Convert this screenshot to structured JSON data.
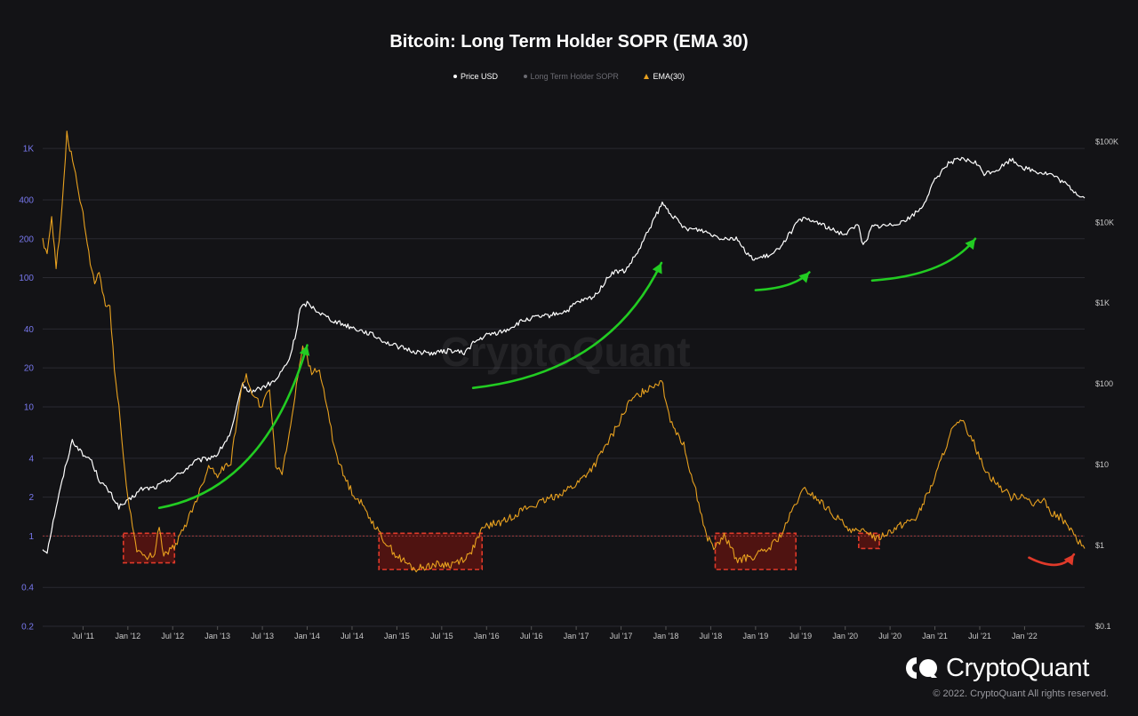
{
  "chart_data": {
    "type": "line",
    "title": "Bitcoin: Long Term Holder SOPR (EMA 30)",
    "legend": {
      "placement": "top-center",
      "items": [
        {
          "label": "Price USD",
          "color": "#ffffff",
          "marker": "dot"
        },
        {
          "label": "Long Term Holder SOPR",
          "color": "#6b6b72",
          "marker": "dot"
        },
        {
          "label": "EMA(30)",
          "color": "#e8a11f",
          "marker": "triangle"
        }
      ]
    },
    "x_ticks": [
      "Jul '11",
      "Jan '12",
      "Jul '12",
      "Jan '13",
      "Jul '13",
      "Jan '14",
      "Jul '14",
      "Jan '15",
      "Jul '15",
      "Jan '16",
      "Jul '16",
      "Jan '17",
      "Jul '17",
      "Jan '18",
      "Jul '18",
      "Jan '19",
      "Jul '19",
      "Jan '20",
      "Jul '20",
      "Jan '21",
      "Jul '21",
      "Jan '22"
    ],
    "x_tick_years": [
      2011.5,
      2012.0,
      2012.5,
      2013.0,
      2013.5,
      2014.0,
      2014.5,
      2015.0,
      2015.5,
      2016.0,
      2016.5,
      2017.0,
      2017.5,
      2018.0,
      2018.5,
      2019.0,
      2019.5,
      2020.0,
      2020.5,
      2021.0,
      2021.5,
      2022.0
    ],
    "x_range": [
      2011.05,
      2022.67
    ],
    "left_axis": {
      "scale": "log",
      "range": [
        0.2,
        1800
      ],
      "ticks": [
        0.2,
        0.4,
        1,
        2,
        4,
        10,
        20,
        40,
        100,
        200,
        400,
        1000
      ],
      "tick_labels": [
        "0.2",
        "0.4",
        "1",
        "2",
        "4",
        "10",
        "20",
        "40",
        "100",
        "200",
        "400",
        "1K"
      ],
      "color": "#7878ee"
    },
    "right_axis": {
      "scale": "log",
      "range": [
        0.1,
        210000
      ],
      "ticks": [
        0.1,
        1,
        10,
        100,
        1000,
        10000,
        100000
      ],
      "tick_labels": [
        "$0.1",
        "$1",
        "$10",
        "$100",
        "$1K",
        "$10K",
        "$100K"
      ]
    },
    "reference_line": {
      "value": 1,
      "axis": "left",
      "color": "#a33a3a",
      "style": "dashed"
    },
    "grid": true,
    "series": [
      {
        "name": "Price USD",
        "axis": "right",
        "color": "#ffffff",
        "x": [
          2011.05,
          2011.1,
          2011.2,
          2011.3,
          2011.38,
          2011.45,
          2011.5,
          2011.58,
          2011.68,
          2011.8,
          2011.9,
          2012.0,
          2012.15,
          2012.3,
          2012.45,
          2012.6,
          2012.75,
          2012.9,
          2013.0,
          2013.15,
          2013.28,
          2013.35,
          2013.5,
          2013.65,
          2013.8,
          2013.88,
          2013.92,
          2014.0,
          2014.15,
          2014.3,
          2014.5,
          2014.7,
          2014.9,
          2015.05,
          2015.2,
          2015.4,
          2015.6,
          2015.75,
          2015.85,
          2016.0,
          2016.2,
          2016.4,
          2016.5,
          2016.7,
          2016.9,
          2017.0,
          2017.2,
          2017.4,
          2017.55,
          2017.7,
          2017.85,
          2017.96,
          2018.05,
          2018.2,
          2018.4,
          2018.6,
          2018.8,
          2018.9,
          2019.0,
          2019.2,
          2019.35,
          2019.5,
          2019.7,
          2019.85,
          2020.0,
          2020.15,
          2020.2,
          2020.3,
          2020.5,
          2020.7,
          2020.85,
          2021.0,
          2021.15,
          2021.3,
          2021.45,
          2021.55,
          2021.7,
          2021.85,
          2022.0,
          2022.15,
          2022.3,
          2022.45,
          2022.6,
          2022.67
        ],
        "y": [
          0.9,
          0.85,
          3,
          9,
          20,
          16,
          13,
          12,
          6.5,
          4.5,
          3,
          3.5,
          5,
          5.2,
          6.5,
          8,
          11,
          12,
          13.5,
          25,
          100,
          80,
          90,
          110,
          200,
          450,
          850,
          1000,
          750,
          600,
          500,
          420,
          320,
          280,
          250,
          240,
          260,
          240,
          320,
          400,
          450,
          600,
          650,
          700,
          800,
          1000,
          1200,
          2400,
          2500,
          4500,
          10000,
          17000,
          13000,
          8500,
          8000,
          6500,
          6300,
          4000,
          3500,
          4000,
          6500,
          11000,
          10000,
          8000,
          7200,
          9500,
          5000,
          8800,
          9200,
          11000,
          15000,
          33000,
          55000,
          60000,
          55000,
          40000,
          45000,
          60000,
          47000,
          42000,
          39000,
          30000,
          22000,
          20000
        ]
      },
      {
        "name": "EMA(30)",
        "axis": "left",
        "color": "#e8a11f",
        "x": [
          2011.05,
          2011.1,
          2011.15,
          2011.2,
          2011.25,
          2011.32,
          2011.4,
          2011.5,
          2011.58,
          2011.63,
          2011.68,
          2011.75,
          2011.8,
          2011.85,
          2011.9,
          2011.95,
          2012.0,
          2012.05,
          2012.1,
          2012.2,
          2012.3,
          2012.35,
          2012.4,
          2012.5,
          2012.6,
          2012.7,
          2012.8,
          2012.9,
          2013.0,
          2013.15,
          2013.25,
          2013.32,
          2013.4,
          2013.5,
          2013.58,
          2013.65,
          2013.72,
          2013.8,
          2013.88,
          2013.95,
          2014.05,
          2014.12,
          2014.2,
          2014.3,
          2014.4,
          2014.5,
          2014.6,
          2014.7,
          2014.8,
          2014.9,
          2015.0,
          2015.2,
          2015.4,
          2015.6,
          2015.8,
          2015.95,
          2016.0,
          2016.2,
          2016.4,
          2016.6,
          2016.8,
          2017.0,
          2017.2,
          2017.4,
          2017.6,
          2017.8,
          2017.95,
          2018.05,
          2018.2,
          2018.35,
          2018.45,
          2018.55,
          2018.65,
          2018.8,
          2019.0,
          2019.15,
          2019.3,
          2019.45,
          2019.55,
          2019.7,
          2019.85,
          2020.0,
          2020.15,
          2020.25,
          2020.35,
          2020.45,
          2020.6,
          2020.8,
          2021.0,
          2021.1,
          2021.2,
          2021.3,
          2021.4,
          2021.5,
          2021.6,
          2021.7,
          2021.85,
          2022.0,
          2022.1,
          2022.2,
          2022.3,
          2022.4,
          2022.5,
          2022.6,
          2022.67
        ],
        "y": [
          200,
          150,
          300,
          120,
          250,
          1300,
          700,
          300,
          130,
          90,
          110,
          60,
          60,
          20,
          10,
          4,
          2,
          1.2,
          0.8,
          0.65,
          0.75,
          1.2,
          0.7,
          0.8,
          1.05,
          1.5,
          2.2,
          3.5,
          3,
          3.8,
          12,
          18,
          12,
          10,
          14,
          3.5,
          3.2,
          6,
          15,
          30,
          18,
          20,
          12,
          5,
          3,
          2.2,
          1.8,
          1.4,
          1.05,
          0.85,
          0.7,
          0.55,
          0.6,
          0.6,
          0.7,
          1.1,
          1.2,
          1.3,
          1.6,
          1.8,
          2.1,
          2.5,
          3.5,
          6,
          11,
          14,
          16,
          8,
          5,
          2,
          1,
          0.8,
          1,
          0.65,
          0.7,
          0.8,
          1.05,
          1.8,
          2.3,
          1.9,
          1.5,
          1.2,
          1.05,
          1.1,
          0.95,
          1.05,
          1.2,
          1.4,
          2.8,
          4.5,
          6.8,
          7.6,
          6,
          4,
          3,
          2.5,
          2,
          2.1,
          1.7,
          1.9,
          1.5,
          1.4,
          1.15,
          0.9,
          0.8
        ]
      }
    ],
    "annotations": [
      {
        "type": "arrow",
        "color": "#22cc22",
        "from_x": 2012.35,
        "from_y_left": 1.65,
        "to_x": 2014.0,
        "to_y_left": 30
      },
      {
        "type": "arrow",
        "color": "#22cc22",
        "from_x": 2015.85,
        "from_y_left": 14,
        "to_x": 2017.95,
        "to_y_left": 130
      },
      {
        "type": "arrow",
        "color": "#22cc22",
        "from_x": 2019.0,
        "from_y_left": 80,
        "to_x": 2019.6,
        "to_y_left": 110
      },
      {
        "type": "arrow",
        "color": "#22cc22",
        "from_x": 2020.3,
        "from_y_left": 95,
        "to_x": 2021.45,
        "to_y_left": 200
      },
      {
        "type": "arrow",
        "color": "#e03a2a",
        "from_x": 2022.05,
        "from_y_left": 0.68,
        "to_x": 2022.55,
        "to_y_left": 0.72
      },
      {
        "type": "box",
        "color": "#e03a2a",
        "x1": 2011.95,
        "x2": 2012.52,
        "y1_left": 1.05,
        "y2_left": 0.62
      },
      {
        "type": "box",
        "color": "#e03a2a",
        "x1": 2014.8,
        "x2": 2015.95,
        "y1_left": 1.05,
        "y2_left": 0.55
      },
      {
        "type": "box",
        "color": "#e03a2a",
        "x1": 2018.55,
        "x2": 2019.45,
        "y1_left": 1.05,
        "y2_left": 0.55
      },
      {
        "type": "box",
        "color": "#e03a2a",
        "x1": 2020.15,
        "x2": 2020.38,
        "y1_left": 1.05,
        "y2_left": 0.8
      }
    ]
  },
  "watermark": "CryptoQuant",
  "brand": {
    "name": "CryptoQuant",
    "logo_icon": "cryptoquant-logo-icon"
  },
  "copyright": "© 2022. CryptoQuant All rights reserved."
}
